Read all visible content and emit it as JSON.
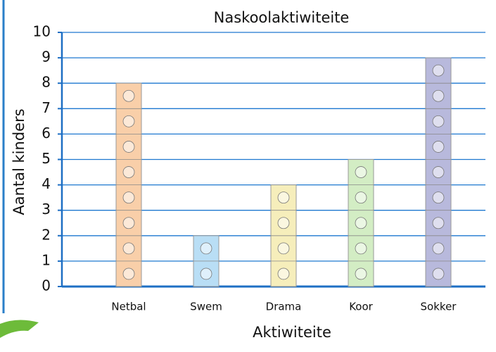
{
  "chart_data": {
    "type": "pictograph",
    "title": "Naskoolaktiwiteite",
    "x_label": "Aktiwiteite",
    "y_label": "Aantal kinders",
    "categories": [
      "Netbal",
      "Swem",
      "Drama",
      "Koor",
      "Sokker"
    ],
    "values": [
      8,
      2,
      4,
      5,
      9
    ],
    "colors": [
      "#f9cfa9",
      "#b9def5",
      "#f6eebb",
      "#d3edc4",
      "#b8b9dc"
    ],
    "ylim": [
      0,
      10
    ],
    "yticks": [
      0,
      1,
      2,
      3,
      4,
      5,
      6,
      7,
      8,
      9,
      10
    ],
    "grid": true
  }
}
